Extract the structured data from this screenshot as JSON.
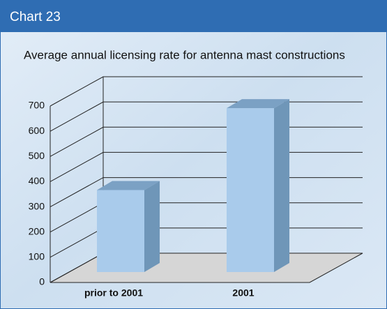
{
  "chart_data": {
    "type": "bar3d",
    "header": "Chart 23",
    "title": "Average annual licensing rate for antenna mast constructions",
    "categories": [
      "prior to 2001",
      "2001"
    ],
    "values": [
      325,
      650
    ],
    "color": "#a9cbeb",
    "ylim": [
      0,
      700
    ],
    "yticks": [
      0,
      100,
      200,
      300,
      400,
      500,
      600,
      700
    ],
    "grid": true
  }
}
